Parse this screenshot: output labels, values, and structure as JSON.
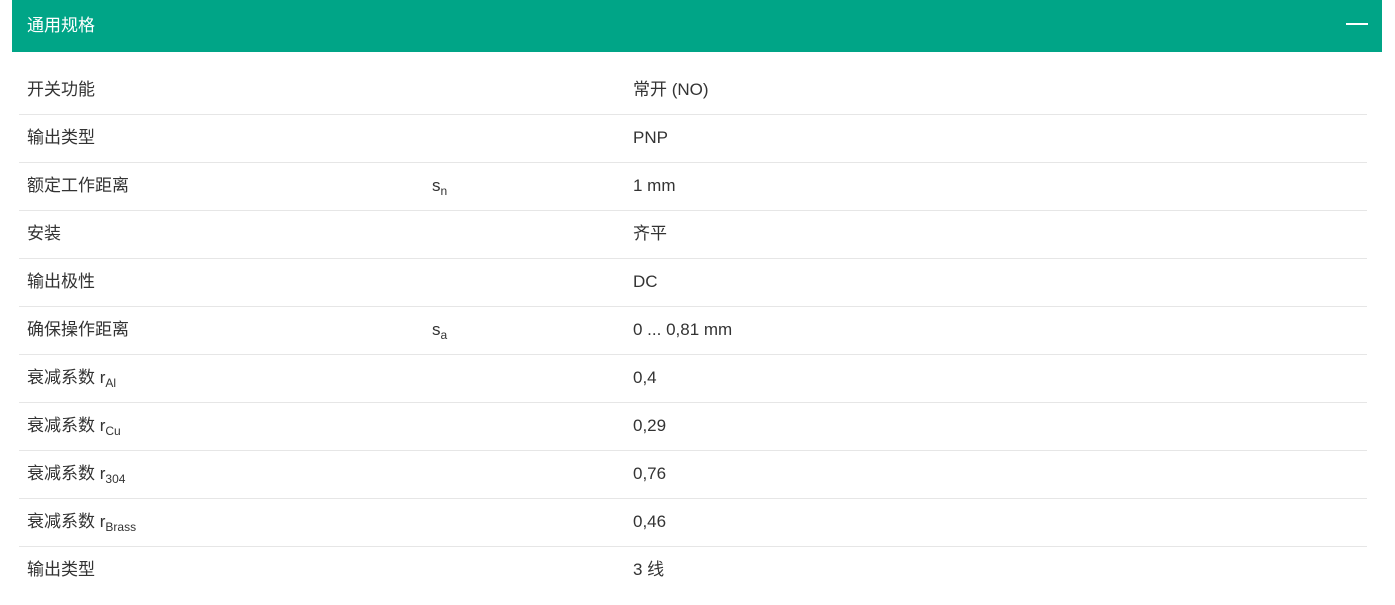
{
  "header": {
    "title": "通用规格",
    "collapse_icon": "minus-icon"
  },
  "rows": [
    {
      "label": "开关功能",
      "label_sub": "",
      "symbol": "",
      "symbol_sub": "",
      "value": "常开 (NO)"
    },
    {
      "label": "输出类型",
      "label_sub": "",
      "symbol": "",
      "symbol_sub": "",
      "value": "PNP"
    },
    {
      "label": "额定工作距离",
      "label_sub": "",
      "symbol": "s",
      "symbol_sub": "n",
      "value": "1 mm"
    },
    {
      "label": "安装",
      "label_sub": "",
      "symbol": "",
      "symbol_sub": "",
      "value": "齐平"
    },
    {
      "label": "输出极性",
      "label_sub": "",
      "symbol": "",
      "symbol_sub": "",
      "value": "DC"
    },
    {
      "label": "确保操作距离",
      "label_sub": "",
      "symbol": "s",
      "symbol_sub": "a",
      "value": "0 ... 0,81 mm"
    },
    {
      "label": "衰减系数 r",
      "label_sub": "Al",
      "symbol": "",
      "symbol_sub": "",
      "value": "0,4"
    },
    {
      "label": "衰减系数 r",
      "label_sub": "Cu",
      "symbol": "",
      "symbol_sub": "",
      "value": "0,29"
    },
    {
      "label": "衰减系数 r",
      "label_sub": "304",
      "symbol": "",
      "symbol_sub": "",
      "value": "0,76"
    },
    {
      "label": "衰减系数 r",
      "label_sub": "Brass",
      "symbol": "",
      "symbol_sub": "",
      "value": "0,46"
    },
    {
      "label": "输出类型",
      "label_sub": "",
      "symbol": "",
      "symbol_sub": "",
      "value": "3 线"
    }
  ]
}
